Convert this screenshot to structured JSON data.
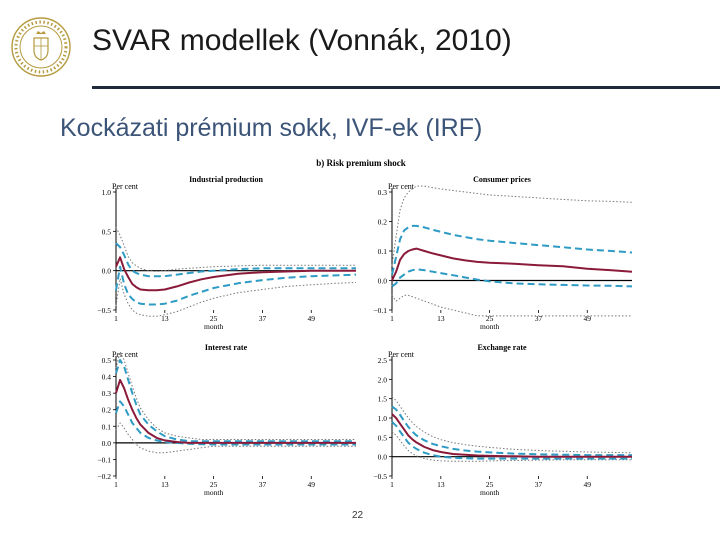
{
  "slide": {
    "title": "SVAR modellek (Vonnák, 2010)",
    "subtitle": "Kockázati prémium sokk, IVF-ek (IRF)",
    "page_number": "22",
    "logo_icon": "central-bank-seal-icon"
  },
  "figure": {
    "panel_label": "b) Risk premium shock"
  },
  "colors": {
    "irf_line": "#8b1a3a",
    "band_inner": "#2e9bc4",
    "band_outer": "#777777",
    "zero_line": "#000000",
    "rule": "#1f2a3a",
    "subtitle": "#3b5478"
  },
  "chart_data": [
    {
      "type": "line",
      "title": "Industrial production",
      "ylabel": "Per cent",
      "xlabel": "month",
      "x_ticks": [
        1,
        13,
        25,
        37,
        49
      ],
      "y_ticks": [
        1.0,
        0.5,
        0.0,
        -0.5
      ],
      "y_tick_labels": [
        "1.0",
        "0.5",
        "0.0",
        "−0.5"
      ],
      "xlim": [
        1,
        60
      ],
      "ylim": [
        -0.5,
        1.0
      ],
      "x": [
        1,
        2,
        3,
        4,
        5,
        6,
        7,
        9,
        11,
        13,
        16,
        19,
        22,
        25,
        31,
        37,
        43,
        49,
        55,
        60
      ],
      "series": [
        {
          "role": "irf",
          "values": [
            0.05,
            0.17,
            0.02,
            -0.08,
            -0.17,
            -0.21,
            -0.24,
            -0.25,
            -0.25,
            -0.24,
            -0.2,
            -0.15,
            -0.11,
            -0.08,
            -0.04,
            -0.02,
            -0.01,
            0.0,
            0.0,
            0.0
          ]
        },
        {
          "role": "inner_upper",
          "values": [
            0.35,
            0.3,
            0.2,
            0.08,
            0.0,
            -0.03,
            -0.05,
            -0.07,
            -0.07,
            -0.07,
            -0.05,
            -0.03,
            -0.01,
            0.0,
            0.02,
            0.03,
            0.03,
            0.03,
            0.03,
            0.03
          ]
        },
        {
          "role": "inner_lower",
          "values": [
            -0.25,
            0.05,
            -0.17,
            -0.3,
            -0.36,
            -0.4,
            -0.42,
            -0.43,
            -0.43,
            -0.42,
            -0.38,
            -0.32,
            -0.27,
            -0.22,
            -0.16,
            -0.12,
            -0.09,
            -0.07,
            -0.06,
            -0.05
          ]
        },
        {
          "role": "outer_upper",
          "values": [
            0.55,
            0.45,
            0.32,
            0.18,
            0.1,
            0.06,
            0.03,
            0.0,
            -0.01,
            0.0,
            0.02,
            0.03,
            0.04,
            0.05,
            0.06,
            0.07,
            0.07,
            0.07,
            0.07,
            0.07
          ]
        },
        {
          "role": "outer_lower",
          "values": [
            -0.45,
            -0.1,
            -0.3,
            -0.42,
            -0.5,
            -0.54,
            -0.56,
            -0.58,
            -0.58,
            -0.56,
            -0.52,
            -0.46,
            -0.4,
            -0.35,
            -0.28,
            -0.24,
            -0.2,
            -0.18,
            -0.16,
            -0.15
          ]
        }
      ]
    },
    {
      "type": "line",
      "title": "Consumer prices",
      "ylabel": "Per cent",
      "xlabel": "month",
      "x_ticks": [
        1,
        13,
        25,
        37,
        49
      ],
      "y_ticks": [
        0.3,
        0.2,
        0.1,
        0.0,
        -0.1
      ],
      "y_tick_labels": [
        "0.3",
        "0.2",
        "0.1",
        "0.0",
        "−0.1"
      ],
      "xlim": [
        1,
        60
      ],
      "ylim": [
        -0.1,
        0.3
      ],
      "x": [
        1,
        2,
        3,
        4,
        5,
        6,
        7,
        9,
        11,
        13,
        16,
        19,
        22,
        25,
        31,
        37,
        43,
        49,
        55,
        60
      ],
      "series": [
        {
          "role": "irf",
          "values": [
            0.0,
            0.03,
            0.07,
            0.09,
            0.1,
            0.105,
            0.108,
            0.1,
            0.092,
            0.085,
            0.075,
            0.068,
            0.063,
            0.06,
            0.057,
            0.052,
            0.048,
            0.04,
            0.035,
            0.03
          ]
        },
        {
          "role": "inner_upper",
          "values": [
            0.02,
            0.08,
            0.14,
            0.17,
            0.18,
            0.185,
            0.185,
            0.18,
            0.172,
            0.165,
            0.155,
            0.147,
            0.14,
            0.135,
            0.127,
            0.12,
            0.113,
            0.105,
            0.1,
            0.095
          ]
        },
        {
          "role": "inner_lower",
          "values": [
            -0.02,
            -0.01,
            0.01,
            0.02,
            0.03,
            0.035,
            0.038,
            0.035,
            0.03,
            0.025,
            0.018,
            0.01,
            0.003,
            -0.003,
            -0.01,
            -0.013,
            -0.015,
            -0.017,
            -0.018,
            -0.02
          ]
        },
        {
          "role": "outer_upper",
          "values": [
            0.05,
            0.15,
            0.24,
            0.28,
            0.3,
            0.31,
            0.32,
            0.32,
            0.315,
            0.31,
            0.305,
            0.3,
            0.295,
            0.29,
            0.285,
            0.28,
            0.275,
            0.27,
            0.268,
            0.265
          ]
        },
        {
          "role": "outer_lower",
          "values": [
            -0.05,
            -0.07,
            -0.06,
            -0.05,
            -0.05,
            -0.055,
            -0.06,
            -0.07,
            -0.08,
            -0.09,
            -0.1,
            -0.11,
            -0.12,
            -0.12,
            -0.12,
            -0.12,
            -0.12,
            -0.12,
            -0.12,
            -0.12
          ]
        }
      ]
    },
    {
      "type": "line",
      "title": "Interest rate",
      "ylabel": "Per cent",
      "xlabel": "month",
      "x_ticks": [
        1,
        13,
        25,
        37,
        49
      ],
      "y_ticks": [
        0.5,
        0.4,
        0.3,
        0.2,
        0.1,
        0.0,
        -0.1,
        -0.2
      ],
      "y_tick_labels": [
        "0.5",
        "0.4",
        "0.3",
        "0.2",
        "0.1",
        "0.0",
        "−0.1",
        "−0.2"
      ],
      "xlim": [
        1,
        60
      ],
      "ylim": [
        -0.2,
        0.5
      ],
      "x": [
        1,
        2,
        3,
        4,
        5,
        6,
        7,
        9,
        11,
        13,
        16,
        19,
        22,
        25,
        31,
        37,
        43,
        49,
        55,
        60
      ],
      "series": [
        {
          "role": "irf",
          "values": [
            0.3,
            0.38,
            0.33,
            0.26,
            0.2,
            0.15,
            0.11,
            0.06,
            0.03,
            0.015,
            0.005,
            0.0,
            0.0,
            0.0,
            0.0,
            0.0,
            0.0,
            0.0,
            0.0,
            0.0
          ]
        },
        {
          "role": "inner_upper",
          "values": [
            0.18,
            0.25,
            0.22,
            0.17,
            0.12,
            0.09,
            0.06,
            0.03,
            0.015,
            0.005,
            0.0,
            -0.005,
            -0.008,
            -0.01,
            -0.01,
            -0.01,
            -0.01,
            -0.01,
            -0.01,
            -0.01
          ]
        },
        {
          "role": "inner_lower",
          "values": [
            0.42,
            0.5,
            0.46,
            0.38,
            0.3,
            0.23,
            0.17,
            0.11,
            0.07,
            0.04,
            0.02,
            0.01,
            0.01,
            0.01,
            0.01,
            0.01,
            0.01,
            0.01,
            0.01,
            0.01
          ]
        },
        {
          "role": "outer_upper",
          "values": [
            0.45,
            0.55,
            0.5,
            0.42,
            0.34,
            0.27,
            0.21,
            0.14,
            0.09,
            0.06,
            0.04,
            0.03,
            0.02,
            0.02,
            0.02,
            0.02,
            0.02,
            0.02,
            0.02,
            0.02
          ]
        },
        {
          "role": "outer_lower",
          "values": [
            0.08,
            0.12,
            0.09,
            0.05,
            0.02,
            -0.01,
            -0.03,
            -0.05,
            -0.06,
            -0.06,
            -0.05,
            -0.04,
            -0.03,
            -0.02,
            -0.02,
            -0.02,
            -0.02,
            -0.02,
            -0.02,
            -0.02
          ]
        }
      ]
    },
    {
      "type": "line",
      "title": "Exchange rate",
      "ylabel": "Per cent",
      "xlabel": "month",
      "x_ticks": [
        1,
        13,
        25,
        37,
        49
      ],
      "y_ticks": [
        2.5,
        2.0,
        1.5,
        1.0,
        0.5,
        0.0,
        -0.5
      ],
      "y_tick_labels": [
        "2.5",
        "2.0",
        "1.5",
        "1.0",
        "0.5",
        "0.0",
        "−0.5"
      ],
      "xlim": [
        1,
        60
      ],
      "ylim": [
        -0.5,
        2.5
      ],
      "x": [
        1,
        2,
        3,
        4,
        5,
        6,
        7,
        9,
        11,
        13,
        16,
        19,
        22,
        25,
        31,
        37,
        43,
        49,
        55,
        60
      ],
      "series": [
        {
          "role": "irf",
          "values": [
            1.1,
            1.0,
            0.85,
            0.7,
            0.55,
            0.45,
            0.37,
            0.25,
            0.17,
            0.12,
            0.07,
            0.05,
            0.03,
            0.02,
            0.01,
            0.0,
            0.0,
            0.0,
            0.0,
            0.0
          ]
        },
        {
          "role": "inner_upper",
          "values": [
            1.3,
            1.22,
            1.08,
            0.92,
            0.77,
            0.65,
            0.55,
            0.42,
            0.33,
            0.27,
            0.2,
            0.16,
            0.13,
            0.11,
            0.08,
            0.06,
            0.05,
            0.04,
            0.04,
            0.04
          ]
        },
        {
          "role": "inner_lower",
          "values": [
            0.9,
            0.8,
            0.65,
            0.5,
            0.36,
            0.27,
            0.2,
            0.1,
            0.04,
            0.0,
            -0.03,
            -0.04,
            -0.05,
            -0.05,
            -0.05,
            -0.05,
            -0.05,
            -0.05,
            -0.05,
            -0.05
          ]
        },
        {
          "role": "outer_upper",
          "values": [
            1.55,
            1.45,
            1.3,
            1.15,
            1.0,
            0.88,
            0.78,
            0.63,
            0.52,
            0.44,
            0.36,
            0.31,
            0.27,
            0.24,
            0.19,
            0.16,
            0.14,
            0.12,
            0.11,
            0.1
          ]
        },
        {
          "role": "outer_lower",
          "values": [
            0.65,
            0.55,
            0.42,
            0.28,
            0.16,
            0.08,
            0.02,
            -0.05,
            -0.09,
            -0.11,
            -0.12,
            -0.12,
            -0.12,
            -0.11,
            -0.1,
            -0.09,
            -0.08,
            -0.08,
            -0.08,
            -0.08
          ]
        }
      ]
    }
  ]
}
